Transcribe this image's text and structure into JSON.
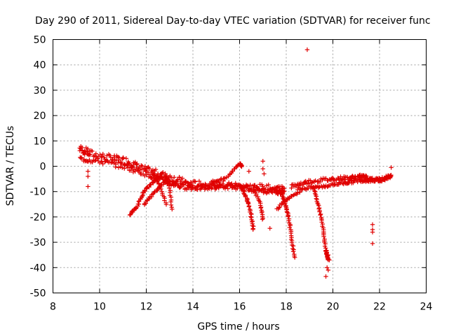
{
  "chart_data": {
    "type": "scatter",
    "title": "Day 290 of 2011, Sidereal Day-to-day VTEC variation (SDTVAR) for receiver func",
    "xlabel": "GPS time / hours",
    "ylabel": "SDTVAR / TECUs",
    "xlim": [
      8,
      24
    ],
    "ylim": [
      -50,
      50
    ],
    "xticks": [
      "8",
      "10",
      "12",
      "14",
      "16",
      "18",
      "20",
      "22",
      "24"
    ],
    "yticks": [
      "50",
      "40",
      "30",
      "20",
      "10",
      "0",
      "-10",
      "-20",
      "-30",
      "-40",
      "-50"
    ],
    "grid": true,
    "marker": "+",
    "color": "#e00000",
    "segments": [
      {
        "name": "main-upper-band",
        "points": [
          [
            9.15,
            7
          ],
          [
            9.6,
            5
          ],
          [
            10.5,
            3
          ],
          [
            11.2,
            2
          ],
          [
            11.8,
            -1
          ],
          [
            12.5,
            -3
          ],
          [
            13.2,
            -5
          ],
          [
            13.8,
            -7
          ],
          [
            14.5,
            -7.5
          ],
          [
            15.2,
            -7
          ],
          [
            16.0,
            -8
          ],
          [
            16.8,
            -8.5
          ],
          [
            17.5,
            -9
          ],
          [
            17.9,
            -9.5
          ]
        ],
        "spread": 3.0,
        "n": 260
      },
      {
        "name": "main-lower-band",
        "points": [
          [
            9.15,
            3
          ],
          [
            10,
            2
          ],
          [
            11,
            0
          ],
          [
            12,
            -3
          ],
          [
            12.8,
            -6
          ],
          [
            13.5,
            -8
          ],
          [
            14.2,
            -8.5
          ],
          [
            15,
            -8
          ],
          [
            15.8,
            -8
          ],
          [
            16.5,
            -9
          ],
          [
            17.5,
            -10
          ],
          [
            17.9,
            -10
          ]
        ],
        "spread": 2.0,
        "n": 200
      },
      {
        "name": "right-upper-band",
        "points": [
          [
            18.2,
            -8
          ],
          [
            19,
            -6
          ],
          [
            20,
            -5
          ],
          [
            20.8,
            -4.5
          ],
          [
            21.3,
            -4
          ],
          [
            21.8,
            -5.5
          ],
          [
            22.2,
            -5
          ],
          [
            22.5,
            -3.5
          ]
        ],
        "spread": 1.5,
        "n": 150
      },
      {
        "name": "right-lower-band",
        "points": [
          [
            18.5,
            -9
          ],
          [
            19.5,
            -8
          ],
          [
            20.5,
            -6.5
          ],
          [
            21.2,
            -5.5
          ],
          [
            21.8,
            -5.5
          ]
        ],
        "spread": 1.2,
        "n": 90
      },
      {
        "name": "arc-11h",
        "points": [
          [
            11.3,
            -19
          ],
          [
            11.6,
            -16
          ],
          [
            11.9,
            -10
          ],
          [
            12.3,
            -6
          ],
          [
            12.7,
            -4
          ]
        ],
        "spread": 0.8,
        "n": 50
      },
      {
        "name": "arc-12h",
        "points": [
          [
            11.9,
            -15
          ],
          [
            12.2,
            -12
          ],
          [
            12.6,
            -8
          ],
          [
            12.9,
            -5
          ]
        ],
        "spread": 0.6,
        "n": 30
      },
      {
        "name": "drop-12.5h",
        "points": [
          [
            12.3,
            -3
          ],
          [
            12.6,
            -8
          ],
          [
            12.85,
            -15
          ]
        ],
        "spread": 0.4,
        "n": 20
      },
      {
        "name": "drop-13h",
        "points": [
          [
            12.8,
            -3
          ],
          [
            13.0,
            -8
          ],
          [
            13.1,
            -17
          ]
        ],
        "spread": 0.4,
        "n": 20
      },
      {
        "name": "rise-15.5h",
        "points": [
          [
            14.8,
            -7
          ],
          [
            15.5,
            -4
          ],
          [
            16.0,
            1
          ],
          [
            16.1,
            0
          ]
        ],
        "spread": 0.6,
        "n": 40
      },
      {
        "name": "drop-16.3h",
        "points": [
          [
            16.1,
            -8
          ],
          [
            16.4,
            -15
          ],
          [
            16.6,
            -25
          ]
        ],
        "spread": 0.5,
        "n": 35
      },
      {
        "name": "drop-16.8h",
        "points": [
          [
            16.6,
            -9
          ],
          [
            16.9,
            -15
          ],
          [
            17.0,
            -21
          ]
        ],
        "spread": 0.4,
        "n": 20
      },
      {
        "name": "drop-18.2h",
        "points": [
          [
            17.8,
            -10
          ],
          [
            18.1,
            -20
          ],
          [
            18.35,
            -36
          ]
        ],
        "spread": 0.4,
        "n": 45
      },
      {
        "name": "arc-18h",
        "points": [
          [
            17.6,
            -17
          ],
          [
            17.9,
            -14
          ],
          [
            18.2,
            -12
          ],
          [
            18.6,
            -10
          ]
        ],
        "spread": 0.5,
        "n": 25
      },
      {
        "name": "drop-19.5h",
        "points": [
          [
            19.2,
            -9
          ],
          [
            19.5,
            -20
          ],
          [
            19.7,
            -33
          ],
          [
            19.8,
            -37
          ]
        ],
        "spread": 0.4,
        "n": 55
      }
    ],
    "outliers": [
      [
        18.9,
        46
      ],
      [
        9.5,
        -2
      ],
      [
        9.5,
        -4
      ],
      [
        9.5,
        -8
      ],
      [
        16.4,
        -2
      ],
      [
        17.0,
        2
      ],
      [
        17.0,
        -1
      ],
      [
        17.05,
        -3
      ],
      [
        17.3,
        -24.5
      ],
      [
        19.75,
        -40
      ],
      [
        19.8,
        -41
      ],
      [
        19.7,
        -43.5
      ],
      [
        19.8,
        -35
      ],
      [
        19.85,
        -37
      ],
      [
        21.7,
        -23
      ],
      [
        21.7,
        -25
      ],
      [
        21.7,
        -26
      ],
      [
        21.7,
        -30.5
      ],
      [
        22.5,
        -0.5
      ]
    ]
  }
}
